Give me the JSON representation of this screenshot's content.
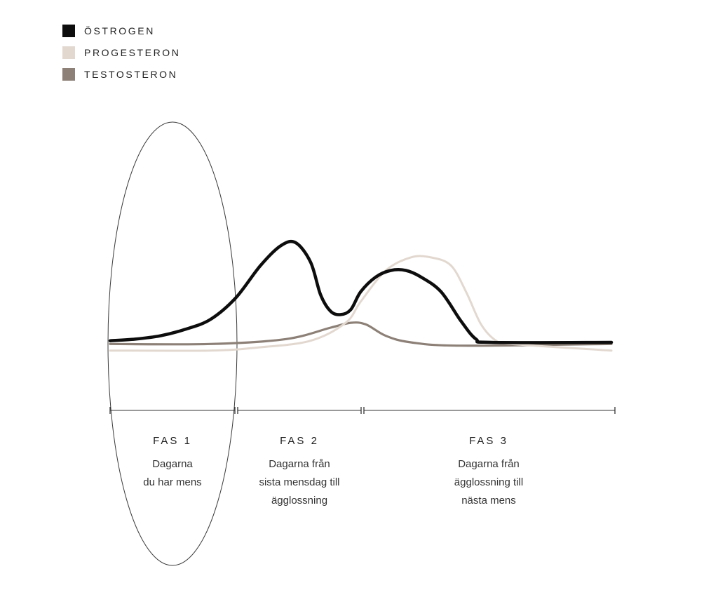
{
  "chart_data": {
    "type": "line",
    "title": "",
    "xlabel": "",
    "ylabel": "",
    "legend": [
      {
        "name": "ÖSTROGEN",
        "color": "#0d0d0d"
      },
      {
        "name": "PROGESTERON",
        "color": "#e2d8d0"
      },
      {
        "name": "TESTOSTERON",
        "color": "#8c8077"
      }
    ],
    "legend_position": "top-left",
    "grid": false,
    "x_range": [
      0,
      100
    ],
    "y_range": [
      0,
      100
    ],
    "series": [
      {
        "name": "ÖSTROGEN",
        "color": "#0d0d0d",
        "points": [
          [
            0,
            4
          ],
          [
            5,
            5
          ],
          [
            10,
            7
          ],
          [
            15,
            11
          ],
          [
            20,
            17
          ],
          [
            25,
            30
          ],
          [
            30,
            50
          ],
          [
            34,
            62
          ],
          [
            37,
            64
          ],
          [
            40,
            52
          ],
          [
            42,
            32
          ],
          [
            44,
            22
          ],
          [
            46,
            20
          ],
          [
            48,
            23
          ],
          [
            50,
            34
          ],
          [
            53,
            43
          ],
          [
            56,
            47
          ],
          [
            59,
            47
          ],
          [
            62,
            43
          ],
          [
            66,
            34
          ],
          [
            70,
            16
          ],
          [
            73,
            5
          ],
          [
            76,
            3
          ],
          [
            100,
            3
          ]
        ]
      },
      {
        "name": "PROGESTERON",
        "color": "#e2d8d0",
        "points": [
          [
            0,
            -2
          ],
          [
            20,
            -2
          ],
          [
            30,
            0
          ],
          [
            40,
            4
          ],
          [
            47,
            15
          ],
          [
            50,
            28
          ],
          [
            55,
            47
          ],
          [
            60,
            55
          ],
          [
            64,
            55
          ],
          [
            68,
            50
          ],
          [
            71,
            34
          ],
          [
            74,
            14
          ],
          [
            77,
            4
          ],
          [
            80,
            2
          ],
          [
            100,
            -2
          ]
        ]
      },
      {
        "name": "TESTOSTERON",
        "color": "#8c8077",
        "points": [
          [
            0,
            2
          ],
          [
            20,
            2
          ],
          [
            35,
            5
          ],
          [
            44,
            12
          ],
          [
            48,
            15
          ],
          [
            51,
            14
          ],
          [
            55,
            7
          ],
          [
            60,
            3
          ],
          [
            70,
            1
          ],
          [
            100,
            2
          ]
        ]
      }
    ],
    "phases": [
      {
        "label": "FAS 1",
        "description": [
          "Dagarna",
          "du har mens"
        ],
        "start": 0,
        "end": 25
      },
      {
        "label": "FAS 2",
        "description": [
          "Dagarna från",
          "sista mensdag till",
          "ägglossning"
        ],
        "start": 25,
        "end": 50
      },
      {
        "label": "FAS 3",
        "description": [
          "Dagarna från",
          "ägglossning till",
          "nästa mens"
        ],
        "start": 50,
        "end": 100
      }
    ],
    "highlighted_phase": "FAS 1"
  }
}
